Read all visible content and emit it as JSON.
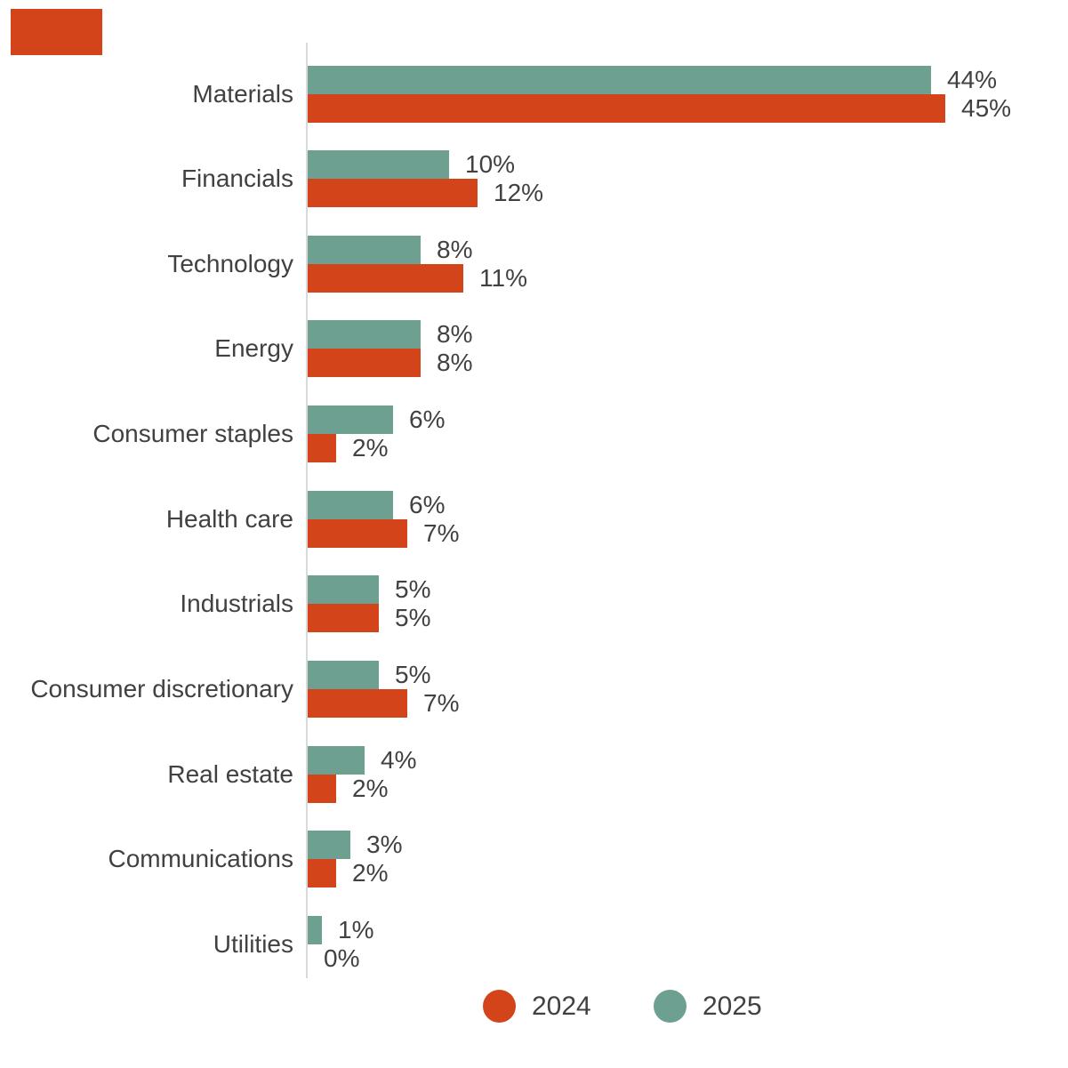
{
  "page": {
    "background": "#FFFFFF"
  },
  "brand_mark": {
    "color": "#D4441B"
  },
  "palette": {
    "orange_2024": "#D4441B",
    "teal_2025": "#6DA090",
    "text": "#414141",
    "axis_line": "#D9D9D9"
  },
  "chart_data": {
    "type": "bar",
    "orientation": "horizontal",
    "title": "",
    "xlabel": "",
    "ylabel": "",
    "grid": false,
    "value_axis_ticks_visible": false,
    "xlim_percent": [
      0,
      52
    ],
    "categories": [
      "Materials",
      "Financials",
      "Technology",
      "Energy",
      "Consumer staples",
      "Health care",
      "Industrials",
      "Consumer discretionary",
      "Real estate",
      "Communications",
      "Utilities"
    ],
    "series": [
      {
        "name": "2025",
        "color": "#6DA090",
        "values_percent": [
          44,
          10,
          8,
          8,
          6,
          6,
          5,
          5,
          4,
          3,
          1
        ],
        "value_labels": [
          "44%",
          "10%",
          "8%",
          "8%",
          "6%",
          "6%",
          "5%",
          "5%",
          "4%",
          "3%",
          "1%"
        ]
      },
      {
        "name": "2024",
        "color": "#D4441B",
        "values_percent": [
          45,
          12,
          11,
          8,
          2,
          7,
          5,
          7,
          2,
          2,
          0
        ],
        "value_labels": [
          "45%",
          "12%",
          "11%",
          "8%",
          "2%",
          "7%",
          "5%",
          "7%",
          "2%",
          "2%",
          "0%"
        ]
      }
    ],
    "legend": {
      "position": "bottom",
      "items": [
        {
          "label": "2024",
          "color": "#D4441B"
        },
        {
          "label": "2025",
          "color": "#6DA090"
        }
      ]
    }
  }
}
